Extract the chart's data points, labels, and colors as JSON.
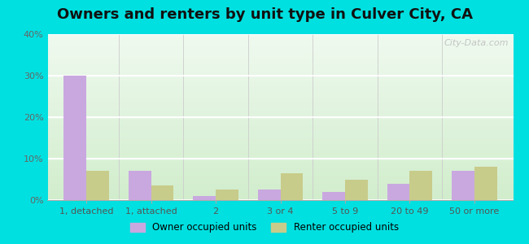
{
  "title": "Owners and renters by unit type in Culver City, CA",
  "categories": [
    "1, detached",
    "1, attached",
    "2",
    "3 or 4",
    "5 to 9",
    "20 to 49",
    "50 or more"
  ],
  "owner_values": [
    30,
    7,
    1,
    2.5,
    2,
    4,
    7
  ],
  "renter_values": [
    7,
    3.5,
    2.5,
    6.5,
    5,
    7,
    8
  ],
  "owner_color": "#c9a8e0",
  "renter_color": "#c8cc8a",
  "background_outer": "#00e0e0",
  "ylim": [
    0,
    40
  ],
  "yticks": [
    0,
    10,
    20,
    30,
    40
  ],
  "ytick_labels": [
    "0%",
    "10%",
    "20%",
    "30%",
    "40%"
  ],
  "legend_owner": "Owner occupied units",
  "legend_renter": "Renter occupied units",
  "title_fontsize": 13,
  "watermark": "City-Data.com",
  "bar_width": 0.35,
  "grad_top_color": "#f0f8ee",
  "grad_bottom_color": "#d5eccc"
}
